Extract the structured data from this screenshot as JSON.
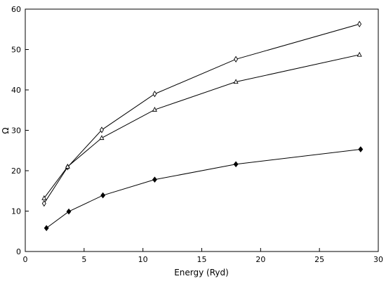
{
  "chart_data": {
    "type": "line",
    "title": "",
    "xlabel": "Energy (Ryd)",
    "ylabel": "Ω",
    "xlim": [
      0,
      30
    ],
    "ylim": [
      0,
      60
    ],
    "xticks": [
      0,
      5,
      10,
      15,
      20,
      25,
      30
    ],
    "yticks": [
      0,
      10,
      20,
      30,
      40,
      50,
      60
    ],
    "grid": false,
    "legend": "none",
    "series": [
      {
        "marker": "diamond",
        "x": [
          1.6,
          3.6,
          6.5,
          11.0,
          17.9,
          28.4
        ],
        "y": [
          11.9,
          20.9,
          30.1,
          39.0,
          47.6,
          56.3
        ]
      },
      {
        "marker": "triangle",
        "x": [
          1.6,
          3.6,
          6.5,
          11.0,
          17.9,
          28.4
        ],
        "y": [
          13.2,
          21.0,
          28.1,
          35.1,
          42.0,
          48.7
        ]
      },
      {
        "marker": "filled-diamond",
        "x": [
          1.8,
          3.7,
          6.6,
          11.0,
          17.9,
          28.5
        ],
        "y": [
          5.8,
          9.9,
          13.9,
          17.8,
          21.6,
          25.3
        ]
      }
    ]
  }
}
